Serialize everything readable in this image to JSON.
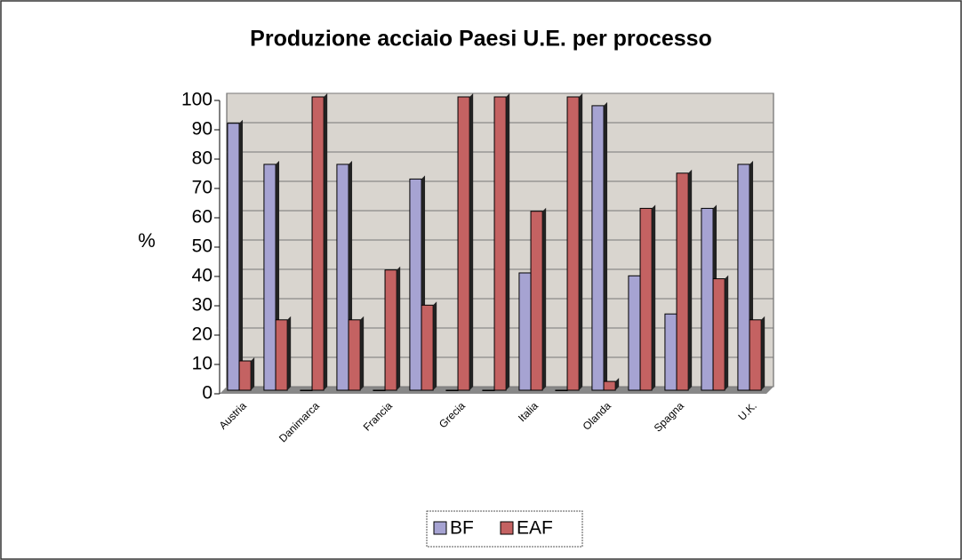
{
  "chart_data": {
    "type": "bar",
    "title": "Produzione acciaio Paesi U.E. per processo",
    "y_label": "%",
    "categories": [
      "Austria",
      null,
      "Danimarca",
      null,
      "Francia",
      null,
      "Grecia",
      null,
      "Italia",
      null,
      "Olanda",
      null,
      "Spagna",
      null,
      "U.K."
    ],
    "series": [
      {
        "name": "BF",
        "color": "#a6a3d2",
        "values": [
          91,
          77,
          0,
          77,
          0,
          72,
          0,
          0,
          40,
          0,
          97,
          39,
          26,
          62,
          77
        ]
      },
      {
        "name": "EAF",
        "color": "#c46262",
        "values": [
          10,
          24,
          100,
          24,
          41,
          29,
          100,
          100,
          61,
          100,
          3,
          62,
          74,
          38,
          24
        ]
      }
    ],
    "ylim": [
      0,
      100
    ],
    "yticks": [
      0,
      10,
      20,
      30,
      40,
      50,
      60,
      70,
      80,
      90,
      100
    ],
    "grid": true,
    "legend": "bottom"
  }
}
